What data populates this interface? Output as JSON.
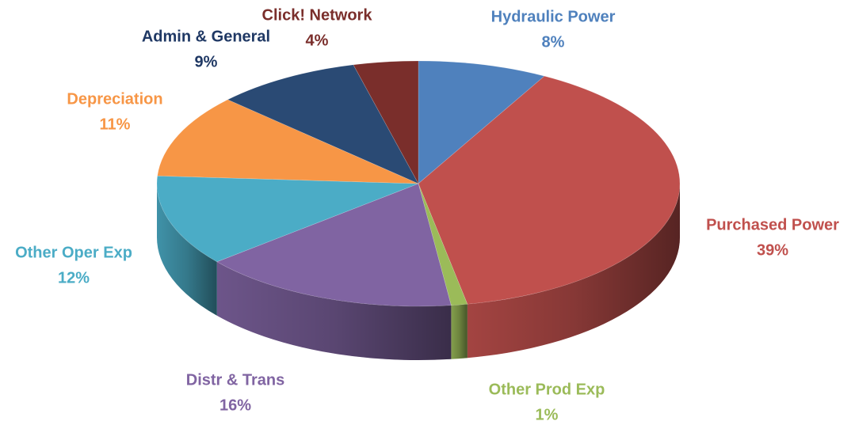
{
  "chart_data": {
    "type": "pie3d",
    "categories": [
      "Hydraulic Power",
      "Purchased Power",
      "Other Prod Exp",
      "Distr & Trans",
      "Other Oper Exp",
      "Depreciation",
      "Admin & General",
      "Click! Network"
    ],
    "values": [
      8,
      39,
      1,
      16,
      12,
      11,
      9,
      4
    ],
    "value_labels": [
      "8%",
      "39%",
      "1%",
      "16%",
      "12%",
      "11%",
      "9%",
      "4%"
    ],
    "colors": [
      "#4f81bd",
      "#c0504d",
      "#9bbb59",
      "#8064a2",
      "#4bacc6",
      "#f79646",
      "#2a4a74",
      "#7a2e2b"
    ],
    "label_colors": [
      "#4f81bd",
      "#c0504d",
      "#9bbb59",
      "#8064a2",
      "#4bacc6",
      "#f79646",
      "#1f3864",
      "#7a2e2b"
    ]
  }
}
